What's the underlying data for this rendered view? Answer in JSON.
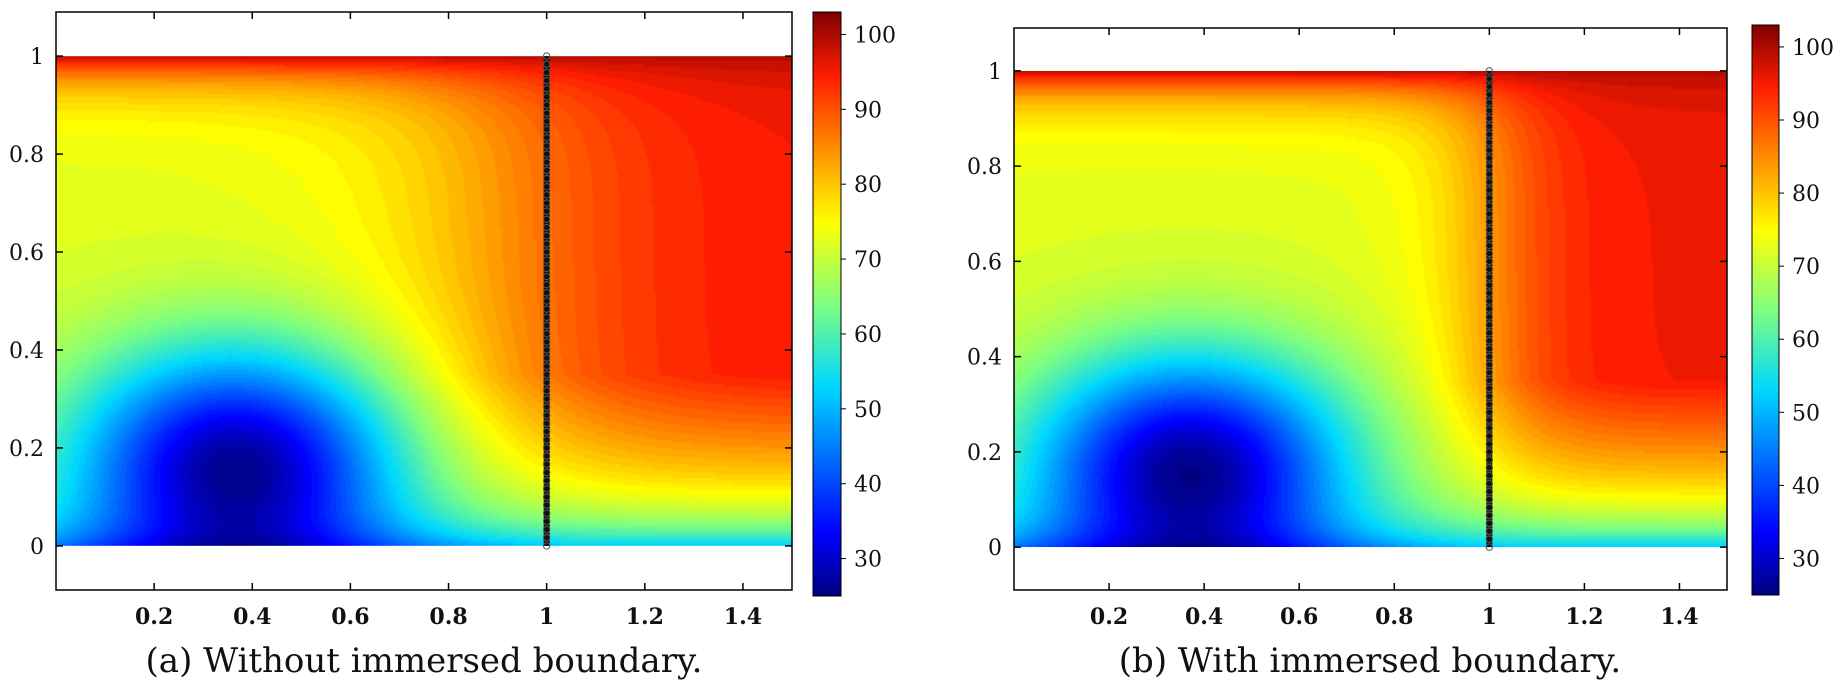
{
  "chart_data": [
    {
      "type": "heatmap",
      "caption": "(a) Without immersed boundary.",
      "title": "",
      "xlabel": "",
      "ylabel": "",
      "xlim": [
        0,
        1.5
      ],
      "ylim": [
        -0.09,
        1.09
      ],
      "domain_x": [
        0,
        1.5
      ],
      "domain_y": [
        0,
        1
      ],
      "x_ticks": [
        0.2,
        0.4,
        0.6,
        0.8,
        1,
        1.2,
        1.4
      ],
      "y_ticks": [
        0,
        0.2,
        0.4,
        0.6,
        0.8,
        1
      ],
      "x_tick_labels": [
        "0.2",
        "0.4",
        "0.6",
        "0.8",
        "1",
        "1.2",
        "1.4"
      ],
      "y_tick_labels": [
        "0",
        "0.2",
        "0.4",
        "0.6",
        "0.8",
        "1"
      ],
      "colorbar": {
        "range": [
          25,
          103
        ],
        "ticks": [
          30,
          40,
          50,
          60,
          70,
          80,
          90,
          100
        ],
        "tick_labels": [
          "30",
          "40",
          "50",
          "60",
          "70",
          "80",
          "90",
          "100"
        ],
        "colormap": "jet"
      },
      "immersed_boundary_line": {
        "x": 1,
        "y_from": 0,
        "y_to": 1
      },
      "frame": "box"
    },
    {
      "type": "heatmap",
      "caption": "(b) With immersed boundary.",
      "title": "",
      "xlabel": "",
      "ylabel": "",
      "xlim": [
        0,
        1.5
      ],
      "ylim": [
        -0.09,
        1.09
      ],
      "domain_x": [
        0,
        1.5
      ],
      "domain_y": [
        0,
        1
      ],
      "x_ticks": [
        0.2,
        0.4,
        0.6,
        0.8,
        1,
        1.2,
        1.4
      ],
      "y_ticks": [
        0,
        0.2,
        0.4,
        0.6,
        0.8,
        1
      ],
      "x_tick_labels": [
        "0.2",
        "0.4",
        "0.6",
        "0.8",
        "1",
        "1.2",
        "1.4"
      ],
      "y_tick_labels": [
        "0",
        "0.2",
        "0.4",
        "0.6",
        "0.8",
        "1"
      ],
      "colorbar": {
        "range": [
          25,
          103
        ],
        "ticks": [
          30,
          40,
          50,
          60,
          70,
          80,
          90,
          100
        ],
        "tick_labels": [
          "30",
          "40",
          "50",
          "60",
          "70",
          "80",
          "90",
          "100"
        ],
        "colormap": "jet"
      },
      "immersed_boundary_line": {
        "x": 1,
        "y_from": 0,
        "y_to": 1
      },
      "frame": "box"
    }
  ]
}
